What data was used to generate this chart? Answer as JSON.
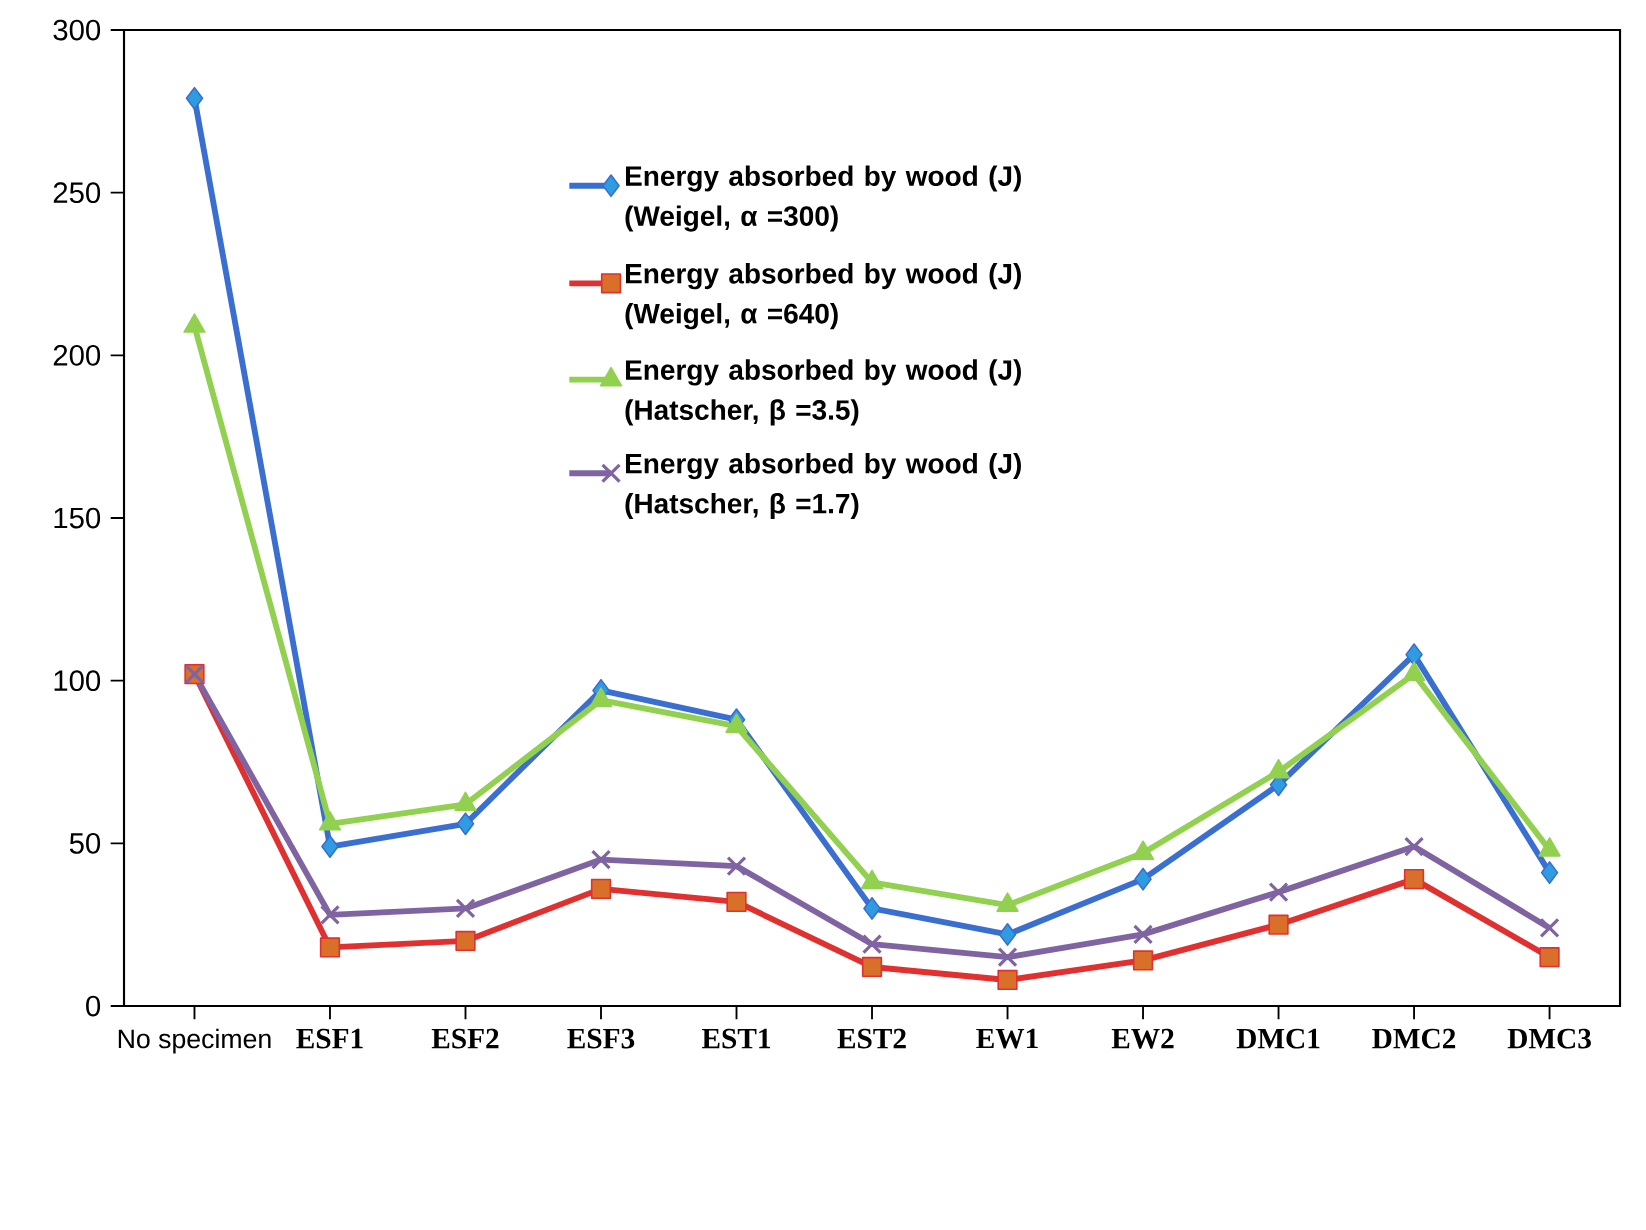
{
  "chart_data": {
    "type": "line",
    "categories": [
      "No specimen",
      "ESF1",
      "ESF2",
      "ESF3",
      "EST1",
      "EST2",
      "EW1",
      "EW2",
      "DMC1",
      "DMC2",
      "DMC3"
    ],
    "series": [
      {
        "name": "Energy absorbed by wood (J) (Weigel, **α** =300)",
        "color": "#3a6fd1",
        "marker": "diamond",
        "values": [
          279,
          49,
          56,
          97,
          88,
          30,
          22,
          39,
          68,
          108,
          41
        ]
      },
      {
        "name": "Energy absorbed by wood (J) (Weigel, **α** =640)",
        "color": "#e03030",
        "marker": "square",
        "values": [
          102,
          18,
          20,
          36,
          32,
          12,
          8,
          14,
          25,
          39,
          15
        ]
      },
      {
        "name": "Energy absorbed by wood (J) (Hatscher, **β** =3.5)",
        "color": "#92d050",
        "marker": "triangle",
        "values": [
          209,
          56,
          62,
          94,
          86,
          38,
          31,
          47,
          72,
          102,
          48
        ]
      },
      {
        "name": "Energy absorbed by wood (J) (Hatscher, **β** =1.7)",
        "color": "#8064a2",
        "marker": "cross",
        "values": [
          102,
          28,
          30,
          45,
          43,
          19,
          15,
          22,
          35,
          49,
          24
        ]
      }
    ],
    "ylim": [
      0,
      300
    ],
    "yticks": [
      0,
      50,
      100,
      150,
      200,
      250,
      300
    ],
    "legend": "top",
    "grid": false
  }
}
